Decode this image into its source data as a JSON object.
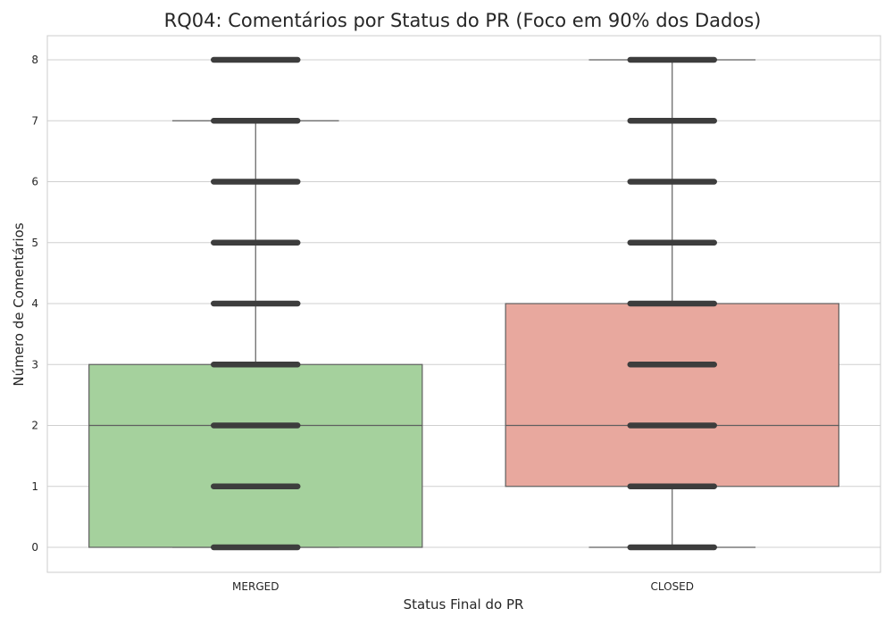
{
  "chart_data": {
    "type": "box",
    "title": "RQ04: Comentários por Status do PR (Foco em 90% dos Dados)",
    "xlabel": "Status Final do PR",
    "ylabel": "Número de Comentários",
    "categories": [
      "MERGED",
      "CLOSED"
    ],
    "ylim": [
      -0.4,
      8.4
    ],
    "yticks": [
      0,
      1,
      2,
      3,
      4,
      5,
      6,
      7,
      8
    ],
    "grid": true,
    "series": [
      {
        "category": "MERGED",
        "color": "#a5d19d",
        "min": 0,
        "q1": 0,
        "median": 2,
        "q3": 3,
        "max": 7,
        "strip_values": [
          0,
          1,
          2,
          3,
          4,
          5,
          6,
          7,
          8
        ]
      },
      {
        "category": "CLOSED",
        "color": "#e8a89e",
        "min": 0,
        "q1": 1,
        "median": 2,
        "q3": 4,
        "max": 8,
        "strip_values": [
          0,
          1,
          2,
          3,
          4,
          5,
          6,
          7,
          8
        ]
      }
    ],
    "colors": {
      "box_edge": "#5f5f5f",
      "strip": "#3d3d3d",
      "grid": "#cfcfcf",
      "frame": "#cccccc"
    }
  }
}
